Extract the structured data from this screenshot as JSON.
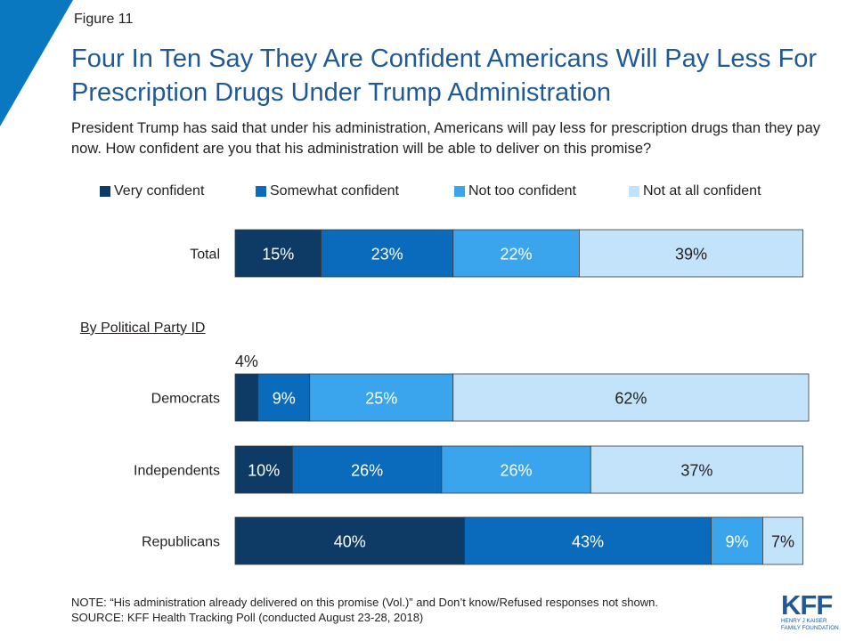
{
  "figure_label": "Figure 11",
  "title": "Four In Ten Say They Are Confident Americans Will Pay Less For Prescription Drugs Under Trump Administration",
  "subtitle": "President Trump has said that under his administration, Americans will pay less for prescription drugs than they pay now. How confident are you that his administration will be able to deliver on this promise?",
  "section_label": "By Political Party ID",
  "note": "NOTE: “His administration already delivered on this promise (Vol.)” and Don’t know/Refused responses not shown.",
  "source": "SOURCE: KFF Health Tracking Poll (conducted August 23-28, 2018)",
  "logo": {
    "mark": "KFF",
    "line1": "HENRY J KAISER",
    "line2": "FAMILY FOUNDATION"
  },
  "colors": {
    "accent_blue": "#1f5a96",
    "corner_blue": "#0a78c0"
  },
  "chart_data": {
    "type": "bar",
    "orientation": "horizontal",
    "stacked": true,
    "categories": [
      "Total",
      "Democrats",
      "Independents",
      "Republicans"
    ],
    "series": [
      {
        "name": "Very confident",
        "color": "#0d3b66",
        "text_color": "#ffffff",
        "values": [
          15,
          4,
          10,
          40
        ]
      },
      {
        "name": "Somewhat confident",
        "color": "#0a6bbd",
        "text_color": "#ffffff",
        "values": [
          23,
          9,
          26,
          43
        ]
      },
      {
        "name": "Not too confident",
        "color": "#3aa4ec",
        "text_color": "#ffffff",
        "values": [
          22,
          25,
          26,
          9
        ]
      },
      {
        "name": "Not at all confident",
        "color": "#c3e3fb",
        "text_color": "#231f20",
        "values": [
          39,
          62,
          37,
          7
        ]
      }
    ],
    "value_suffix": "%",
    "legend": "top",
    "grid": false,
    "xlim": [
      0,
      100
    ]
  }
}
